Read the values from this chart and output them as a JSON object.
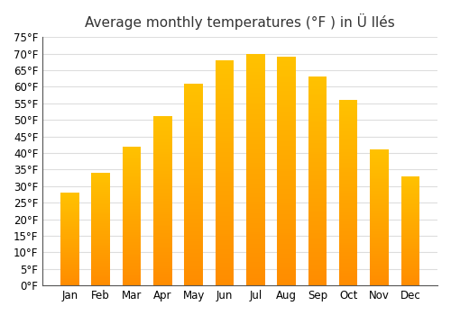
{
  "title": "Average monthly temperatures (°F ) in Ü llés",
  "months": [
    "Jan",
    "Feb",
    "Mar",
    "Apr",
    "May",
    "Jun",
    "Jul",
    "Aug",
    "Sep",
    "Oct",
    "Nov",
    "Dec"
  ],
  "values": [
    28,
    34,
    42,
    51,
    61,
    68,
    70,
    69,
    63,
    56,
    41,
    33
  ],
  "ylim": [
    0,
    75
  ],
  "yticks": [
    0,
    5,
    10,
    15,
    20,
    25,
    30,
    35,
    40,
    45,
    50,
    55,
    60,
    65,
    70,
    75
  ],
  "bar_color_top": "#FFC200",
  "bar_color_bottom": "#FF8C00",
  "background_color": "#ffffff",
  "grid_color": "#dddddd",
  "title_fontsize": 11,
  "tick_fontsize": 8.5
}
